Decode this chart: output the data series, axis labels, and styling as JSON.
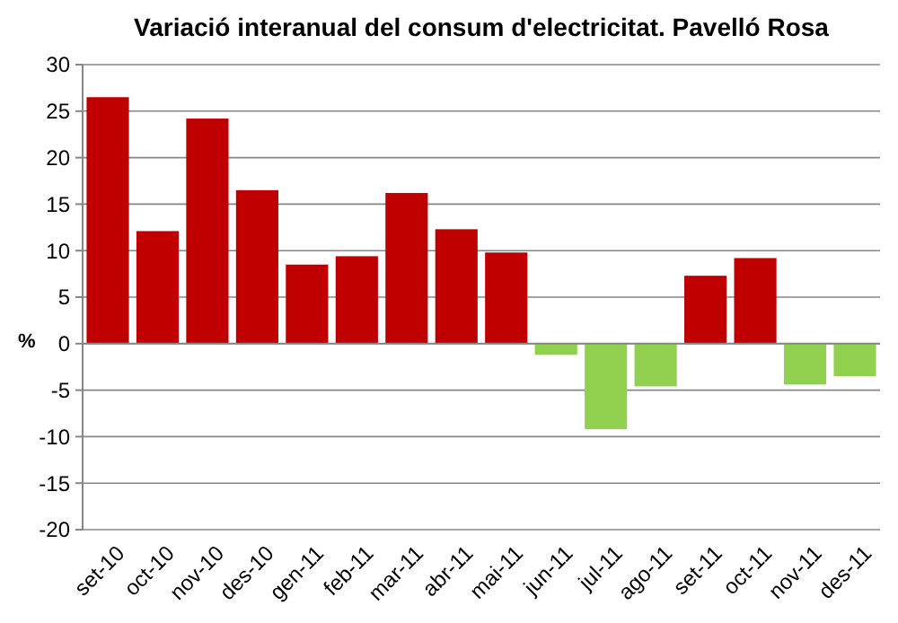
{
  "chart_data": {
    "type": "bar",
    "title": "Variació interanual del consum d'electricitat. Pavelló Rosa",
    "ylabel": "%",
    "categories": [
      "set-10",
      "oct-10",
      "nov-10",
      "des-10",
      "gen-11",
      "feb-11",
      "mar-11",
      "abr-11",
      "mai-11",
      "jun-11",
      "jul-11",
      "ago-11",
      "set-11",
      "oct-11",
      "nov-11",
      "des-11"
    ],
    "values": [
      26.5,
      12.1,
      24.2,
      16.5,
      8.5,
      9.4,
      16.2,
      12.3,
      9.8,
      -1.2,
      -9.2,
      -4.6,
      7.3,
      9.2,
      -4.4,
      -3.5
    ],
    "colors": [
      "#c00000",
      "#c00000",
      "#c00000",
      "#c00000",
      "#c00000",
      "#c00000",
      "#c00000",
      "#c00000",
      "#c00000",
      "#92d050",
      "#92d050",
      "#92d050",
      "#c00000",
      "#c00000",
      "#92d050",
      "#92d050"
    ],
    "ylim": [
      -20,
      30
    ],
    "yticks": [
      -20,
      -15,
      -10,
      -5,
      0,
      5,
      10,
      15,
      20,
      25,
      30
    ],
    "grid": "y"
  }
}
